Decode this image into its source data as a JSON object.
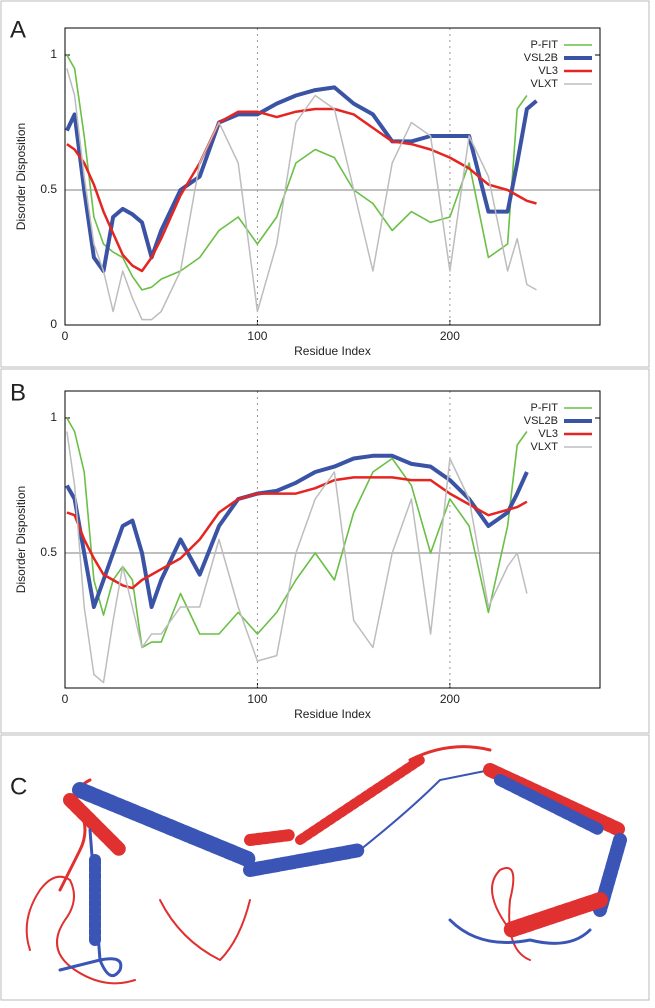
{
  "chart_data": [
    {
      "type": "line",
      "panel": "A",
      "x_label": "Residue Index",
      "y_label": "Disorder Disposition",
      "xlim": [
        0,
        278
      ],
      "ylim": [
        0,
        1.1
      ],
      "xticks": [
        0,
        100,
        200
      ],
      "yticks": [
        0,
        0.5,
        1
      ],
      "xgrid": true,
      "threshold": 0.5,
      "legend": "top-right",
      "x": [
        1,
        5,
        10,
        15,
        20,
        25,
        30,
        35,
        40,
        45,
        50,
        60,
        70,
        80,
        90,
        100,
        110,
        120,
        130,
        140,
        150,
        160,
        170,
        180,
        190,
        200,
        210,
        220,
        230,
        235,
        240,
        245
      ],
      "series": [
        {
          "name": "P-FIT",
          "color": "#6abf45",
          "width": 1.6,
          "values": [
            1.0,
            0.95,
            0.7,
            0.4,
            0.3,
            0.27,
            0.25,
            0.18,
            0.13,
            0.14,
            0.17,
            0.2,
            0.25,
            0.35,
            0.4,
            0.3,
            0.4,
            0.6,
            0.65,
            0.62,
            0.5,
            0.45,
            0.35,
            0.42,
            0.38,
            0.4,
            0.6,
            0.25,
            0.3,
            0.8,
            0.85,
            null
          ]
        },
        {
          "name": "VSL2B",
          "color": "#3a53a4",
          "width": 4,
          "values": [
            0.72,
            0.78,
            0.5,
            0.25,
            0.2,
            0.4,
            0.43,
            0.41,
            0.38,
            0.25,
            0.35,
            0.5,
            0.55,
            0.75,
            0.78,
            0.78,
            0.82,
            0.85,
            0.87,
            0.88,
            0.82,
            0.78,
            0.68,
            0.68,
            0.7,
            0.7,
            0.7,
            0.42,
            0.42,
            0.6,
            0.8,
            0.83
          ]
        },
        {
          "name": "VL3",
          "color": "#e52521",
          "width": 2.5,
          "values": [
            0.67,
            0.65,
            0.6,
            0.52,
            0.42,
            0.34,
            0.26,
            0.22,
            0.2,
            0.25,
            0.32,
            0.48,
            0.6,
            0.75,
            0.79,
            0.79,
            0.77,
            0.79,
            0.8,
            0.8,
            0.78,
            0.73,
            0.68,
            0.67,
            0.65,
            0.62,
            0.58,
            0.52,
            0.5,
            0.48,
            0.46,
            0.45
          ]
        },
        {
          "name": "VLXT",
          "color": "#bdbdbd",
          "width": 1.5,
          "values": [
            0.95,
            0.85,
            0.55,
            0.3,
            0.2,
            0.05,
            0.2,
            0.1,
            0.02,
            0.02,
            0.05,
            0.2,
            0.6,
            0.75,
            0.6,
            0.05,
            0.3,
            0.75,
            0.85,
            0.8,
            0.5,
            0.2,
            0.6,
            0.75,
            0.7,
            0.2,
            0.7,
            0.55,
            0.2,
            0.32,
            0.15,
            0.13
          ]
        }
      ]
    },
    {
      "type": "line",
      "panel": "B",
      "x_label": "Residue Index",
      "y_label": "Disorder Disposition",
      "xlim": [
        0,
        278
      ],
      "ylim": [
        0,
        1.1
      ],
      "xticks": [
        0,
        100,
        200
      ],
      "yticks": [
        0.5,
        1
      ],
      "xgrid": true,
      "threshold": 0.5,
      "legend": "top-right",
      "x": [
        1,
        5,
        10,
        15,
        20,
        25,
        30,
        35,
        40,
        45,
        50,
        60,
        70,
        80,
        90,
        100,
        110,
        120,
        130,
        140,
        150,
        160,
        170,
        180,
        190,
        200,
        210,
        220,
        230,
        235,
        240,
        245
      ],
      "series": [
        {
          "name": "P-FIT",
          "color": "#6abf45",
          "width": 1.6,
          "values": [
            1.0,
            0.95,
            0.8,
            0.4,
            0.27,
            0.4,
            0.45,
            0.4,
            0.15,
            0.17,
            0.17,
            0.35,
            0.2,
            0.2,
            0.28,
            0.2,
            0.28,
            0.4,
            0.5,
            0.4,
            0.65,
            0.8,
            0.85,
            0.75,
            0.5,
            0.7,
            0.6,
            0.28,
            0.6,
            0.9,
            0.95,
            null
          ]
        },
        {
          "name": "VSL2B",
          "color": "#3a53a4",
          "width": 4,
          "values": [
            0.75,
            0.7,
            0.5,
            0.3,
            0.4,
            0.5,
            0.6,
            0.62,
            0.5,
            0.3,
            0.4,
            0.55,
            0.42,
            0.6,
            0.7,
            0.72,
            0.73,
            0.76,
            0.8,
            0.82,
            0.85,
            0.86,
            0.86,
            0.83,
            0.82,
            0.77,
            0.7,
            0.6,
            0.65,
            0.72,
            0.8,
            null
          ]
        },
        {
          "name": "VL3",
          "color": "#e52521",
          "width": 2.5,
          "values": [
            0.65,
            0.64,
            0.55,
            0.48,
            0.42,
            0.4,
            0.38,
            0.37,
            0.4,
            0.42,
            0.44,
            0.48,
            0.55,
            0.65,
            0.7,
            0.72,
            0.72,
            0.72,
            0.74,
            0.77,
            0.78,
            0.78,
            0.78,
            0.77,
            0.77,
            0.72,
            0.68,
            0.64,
            0.66,
            0.67,
            0.69,
            null
          ]
        },
        {
          "name": "VLXT",
          "color": "#bdbdbd",
          "width": 1.5,
          "values": [
            0.95,
            0.75,
            0.3,
            0.05,
            0.02,
            0.25,
            0.45,
            0.3,
            0.15,
            0.2,
            0.2,
            0.3,
            0.3,
            0.55,
            0.3,
            0.1,
            0.12,
            0.5,
            0.7,
            0.8,
            0.25,
            0.15,
            0.5,
            0.7,
            0.2,
            0.85,
            0.7,
            0.3,
            0.45,
            0.5,
            0.35,
            null
          ]
        }
      ]
    }
  ],
  "panel_c": {
    "label": "C"
  }
}
